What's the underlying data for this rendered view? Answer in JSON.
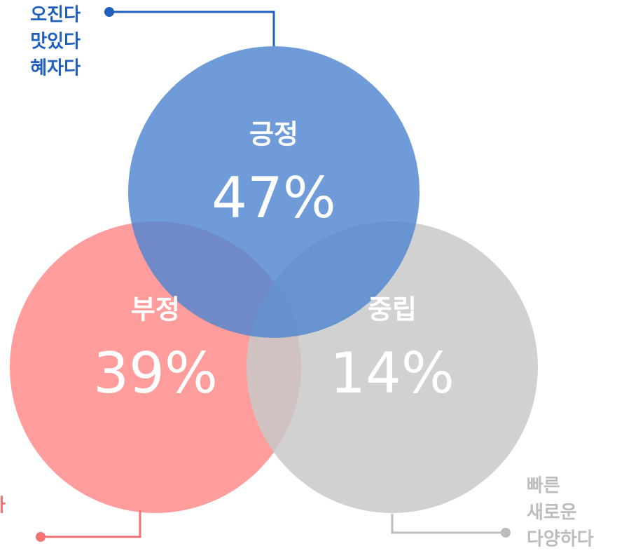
{
  "chart_data": {
    "type": "venn",
    "categories": [
      "긍정",
      "부정",
      "중립"
    ],
    "values": [
      47,
      39,
      14
    ],
    "value_labels": [
      "47%",
      "39%",
      "14%"
    ],
    "colors": [
      "#4f86d0",
      "#ff8c8c",
      "#c9c9c9"
    ],
    "keywords": [
      [
        "오진다",
        "맛있다",
        "혜자다"
      ],
      [
        "가"
      ],
      [
        "빠른",
        "새로운",
        "다양하다"
      ]
    ],
    "keyword_colors": [
      "#1f5fbf",
      "#f47272",
      "#bdbdbd"
    ]
  }
}
